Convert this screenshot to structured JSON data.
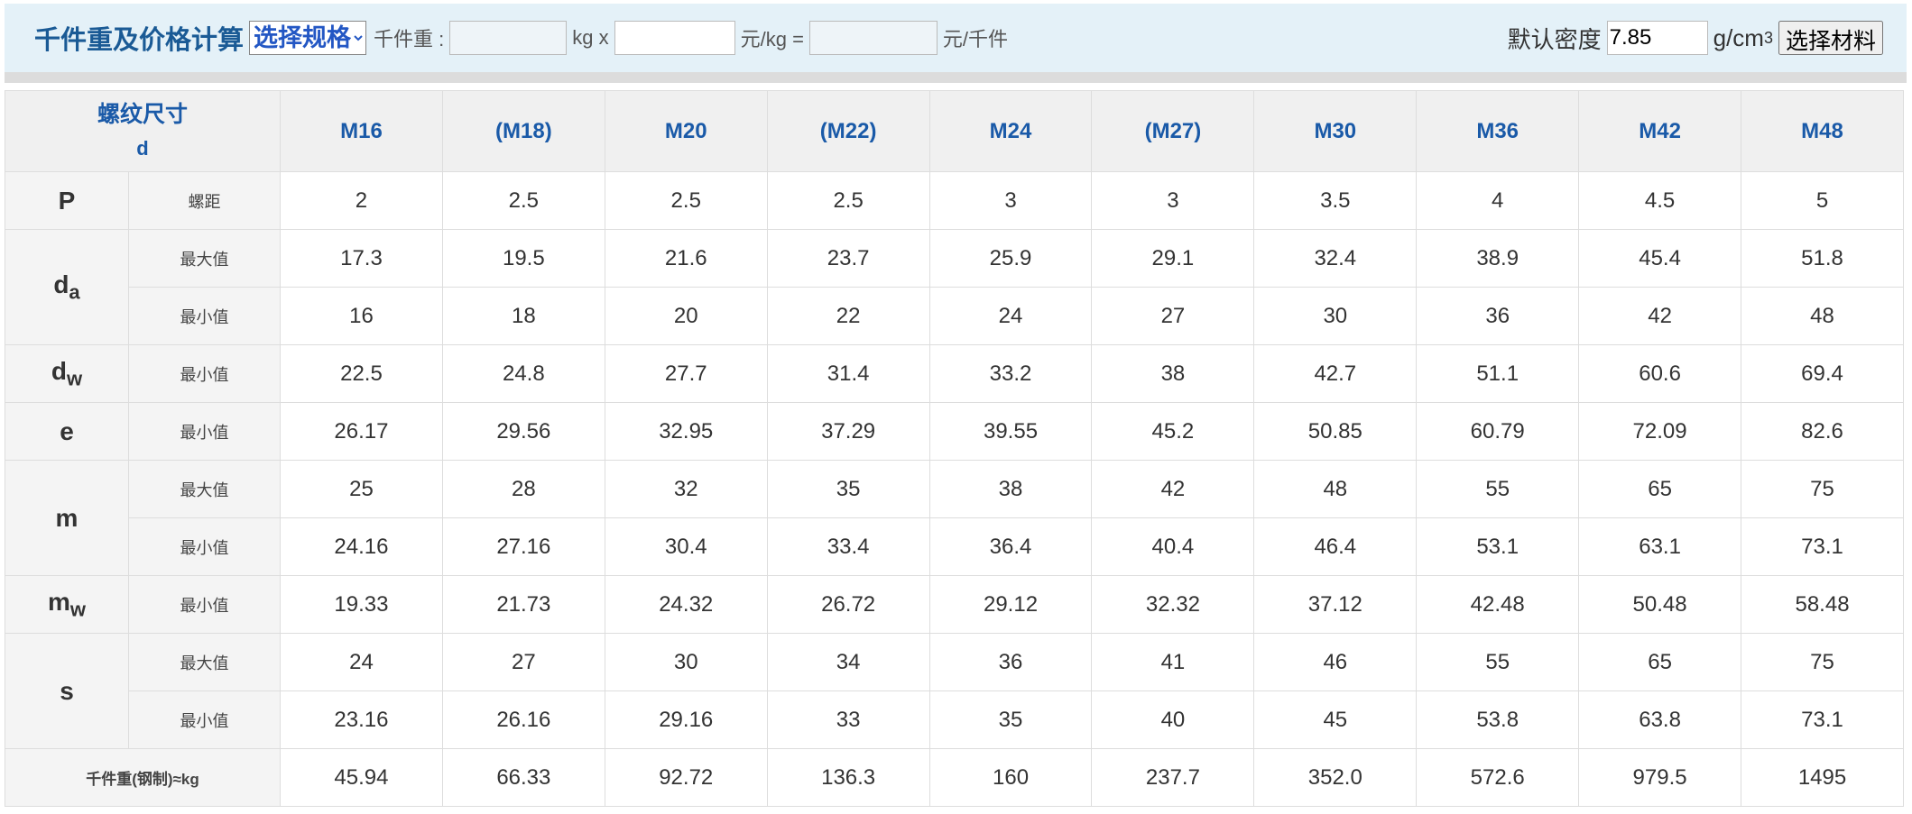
{
  "toolbar": {
    "title": "千件重及价格计算",
    "select": "选择规格",
    "weight_label": "千件重 :",
    "weight_unit": "kg x",
    "price_unit": "元/kg =",
    "result_unit": "元/千件",
    "density_label": "默认密度",
    "density_value": "7.85",
    "density_unit": "g/cm",
    "density_exp": "3",
    "material_button": "选择材料"
  },
  "table": {
    "header_label": "螺纹尺寸",
    "header_sub": "d",
    "columns": [
      "M16",
      "(M18)",
      "M20",
      "(M22)",
      "M24",
      "(M27)",
      "M30",
      "M36",
      "M42",
      "M48"
    ],
    "groups": [
      {
        "symbol": "P",
        "rows": [
          {
            "label": "螺距",
            "values": [
              "2",
              "2.5",
              "2.5",
              "2.5",
              "3",
              "3",
              "3.5",
              "4",
              "4.5",
              "5"
            ]
          }
        ]
      },
      {
        "symbol": "d",
        "subscript": "a",
        "rows": [
          {
            "label": "最大值",
            "values": [
              "17.3",
              "19.5",
              "21.6",
              "23.7",
              "25.9",
              "29.1",
              "32.4",
              "38.9",
              "45.4",
              "51.8"
            ]
          },
          {
            "label": "最小值",
            "values": [
              "16",
              "18",
              "20",
              "22",
              "24",
              "27",
              "30",
              "36",
              "42",
              "48"
            ]
          }
        ]
      },
      {
        "symbol": "d",
        "subscript": "w",
        "rows": [
          {
            "label": "最小值",
            "values": [
              "22.5",
              "24.8",
              "27.7",
              "31.4",
              "33.2",
              "38",
              "42.7",
              "51.1",
              "60.6",
              "69.4"
            ]
          }
        ]
      },
      {
        "symbol": "e",
        "rows": [
          {
            "label": "最小值",
            "values": [
              "26.17",
              "29.56",
              "32.95",
              "37.29",
              "39.55",
              "45.2",
              "50.85",
              "60.79",
              "72.09",
              "82.6"
            ]
          }
        ]
      },
      {
        "symbol": "m",
        "rows": [
          {
            "label": "最大值",
            "values": [
              "25",
              "28",
              "32",
              "35",
              "38",
              "42",
              "48",
              "55",
              "65",
              "75"
            ]
          },
          {
            "label": "最小值",
            "values": [
              "24.16",
              "27.16",
              "30.4",
              "33.4",
              "36.4",
              "40.4",
              "46.4",
              "53.1",
              "63.1",
              "73.1"
            ]
          }
        ]
      },
      {
        "symbol": "m",
        "subscript": "w",
        "rows": [
          {
            "label": "最小值",
            "values": [
              "19.33",
              "21.73",
              "24.32",
              "26.72",
              "29.12",
              "32.32",
              "37.12",
              "42.48",
              "50.48",
              "58.48"
            ]
          }
        ]
      },
      {
        "symbol": "s",
        "rows": [
          {
            "label": "最大值",
            "values": [
              "24",
              "27",
              "30",
              "34",
              "36",
              "41",
              "46",
              "55",
              "65",
              "75"
            ]
          },
          {
            "label": "最小值",
            "values": [
              "23.16",
              "26.16",
              "29.16",
              "33",
              "35",
              "40",
              "45",
              "53.8",
              "63.8",
              "73.1"
            ]
          }
        ]
      }
    ],
    "footer": {
      "label": "千件重(钢制)≈kg",
      "values": [
        "45.94",
        "66.33",
        "92.72",
        "136.3",
        "160",
        "237.7",
        "352.0",
        "572.6",
        "979.5",
        "1495"
      ]
    }
  }
}
